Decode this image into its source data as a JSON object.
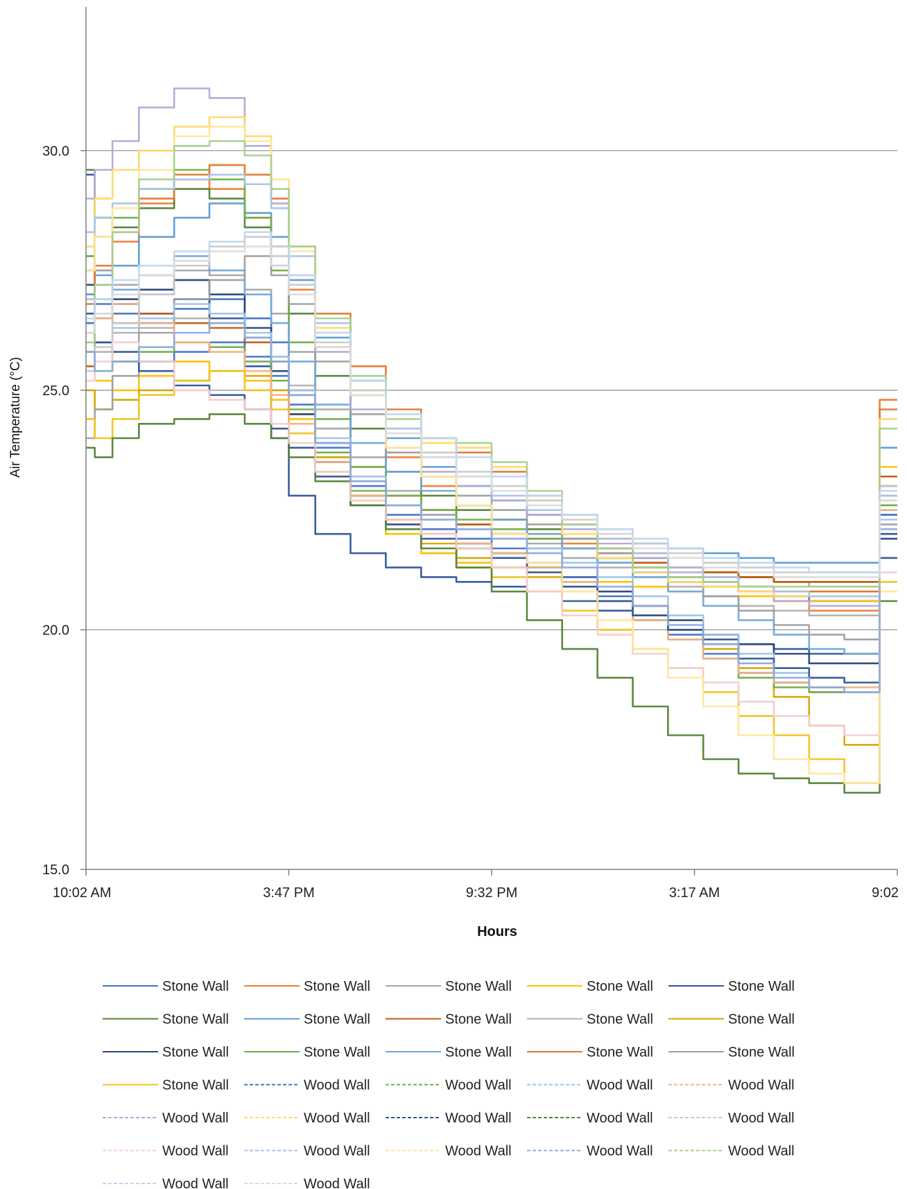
{
  "chart_data": {
    "type": "line",
    "xlabel": "Hours",
    "ylabel": "Air Temperature (°C)",
    "ylim": [
      15,
      33
    ],
    "y_ticks": [
      15.0,
      20.0,
      25.0,
      30.0
    ],
    "y_tick_labels": [
      "15.0",
      "20.0",
      "25.0",
      "30.0"
    ],
    "x_tick_labels": [
      "10:02 AM",
      "3:47 PM",
      "9:32 PM",
      "3:17 AM",
      "9:02"
    ],
    "x_tick_hours": [
      0,
      5.75,
      11.5,
      17.25,
      23
    ],
    "x_range_hours": [
      0,
      23
    ],
    "grid": "horizontal",
    "legend_position": "bottom",
    "x_hours": [
      0,
      0.5,
      1,
      2,
      3,
      4,
      5,
      5.5,
      6,
      7,
      8,
      9,
      10,
      11,
      12,
      13,
      14,
      15,
      16,
      17,
      18,
      19,
      20,
      21,
      22,
      23
    ],
    "series": [
      {
        "name": "Stone Wall",
        "color": "#4472c4",
        "dashed": false,
        "values": [
          27.5,
          26.8,
          26.6,
          26.4,
          26.7,
          26.9,
          26.5,
          26.0,
          24.9,
          23.9,
          23.1,
          22.6,
          22.4,
          22.2,
          22.0,
          21.7,
          21.5,
          21.4,
          21.2,
          21.0,
          20.9,
          20.8,
          20.7,
          20.6,
          20.6,
          22.4
        ]
      },
      {
        "name": "Stone Wall",
        "color": "#ed7d31",
        "dashed": false,
        "values": [
          27.0,
          27.5,
          28.1,
          28.9,
          29.4,
          29.2,
          28.6,
          28.0,
          27.1,
          25.9,
          24.9,
          23.6,
          23.0,
          22.6,
          22.3,
          22.0,
          21.8,
          21.5,
          21.3,
          21.1,
          21.0,
          20.8,
          20.6,
          20.4,
          20.4,
          24.8
        ]
      },
      {
        "name": "Stone Wall",
        "color": "#a5a5a5",
        "dashed": false,
        "values": [
          27.8,
          27.5,
          27.2,
          27.0,
          27.5,
          27.4,
          27.1,
          26.6,
          25.8,
          24.6,
          23.6,
          22.9,
          22.5,
          22.2,
          22.0,
          21.8,
          21.7,
          21.5,
          21.4,
          21.3,
          21.2,
          21.1,
          21.0,
          20.9,
          20.9,
          22.6
        ]
      },
      {
        "name": "Stone Wall",
        "color": "#ffc000",
        "dashed": false,
        "values": [
          25.8,
          25.2,
          25.0,
          25.3,
          25.6,
          25.4,
          25.2,
          24.8,
          24.4,
          23.6,
          22.7,
          22.0,
          21.6,
          21.4,
          21.3,
          21.2,
          21.1,
          21.0,
          20.9,
          20.8,
          20.7,
          20.7,
          20.6,
          20.6,
          20.6,
          23.4
        ]
      },
      {
        "name": "Stone Wall",
        "color": "#2f5597",
        "dashed": false,
        "values": [
          29.5,
          27.2,
          26.8,
          26.6,
          26.9,
          26.5,
          25.5,
          24.0,
          22.8,
          22.0,
          21.6,
          21.3,
          21.1,
          21.0,
          20.9,
          20.8,
          20.6,
          20.4,
          20.2,
          20.0,
          19.8,
          19.7,
          19.6,
          19.5,
          19.5,
          21.5
        ]
      },
      {
        "name": "Stone Wall",
        "color": "#548235",
        "dashed": false,
        "values": [
          29.6,
          28.6,
          28.4,
          28.8,
          29.2,
          29.0,
          28.4,
          27.6,
          26.6,
          25.3,
          24.2,
          23.3,
          22.8,
          22.5,
          22.3,
          22.1,
          21.9,
          21.7,
          21.5,
          21.3,
          21.2,
          21.1,
          21.0,
          21.0,
          21.0,
          23.0
        ]
      },
      {
        "name": "Stone Wall",
        "color": "#5b9bd5",
        "dashed": false,
        "values": [
          27.0,
          27.4,
          27.6,
          28.2,
          28.6,
          28.9,
          28.7,
          28.2,
          27.3,
          26.1,
          25.0,
          24.0,
          23.4,
          23.0,
          22.7,
          22.4,
          22.2,
          22.0,
          21.8,
          21.7,
          21.6,
          21.5,
          21.4,
          21.4,
          21.4,
          23.8
        ]
      },
      {
        "name": "Stone Wall",
        "color": "#c55a11",
        "dashed": false,
        "values": [
          25.5,
          26.0,
          26.4,
          26.6,
          26.4,
          26.3,
          26.0,
          25.6,
          25.0,
          24.2,
          23.4,
          22.8,
          22.5,
          22.2,
          22.0,
          21.9,
          21.7,
          21.6,
          21.4,
          21.3,
          21.2,
          21.1,
          21.0,
          21.0,
          21.0,
          23.2
        ]
      },
      {
        "name": "Stone Wall",
        "color": "#b0b0b0",
        "dashed": false,
        "values": [
          26.0,
          25.8,
          26.2,
          26.3,
          26.5,
          26.4,
          26.1,
          25.7,
          25.1,
          24.2,
          23.4,
          22.8,
          22.4,
          22.1,
          21.9,
          21.7,
          21.5,
          21.3,
          21.1,
          20.9,
          20.7,
          20.5,
          20.4,
          20.3,
          20.3,
          22.0
        ]
      },
      {
        "name": "Stone Wall",
        "color": "#d4a500",
        "dashed": false,
        "values": [
          25.0,
          24.6,
          24.8,
          25.0,
          25.2,
          25.4,
          25.3,
          25.0,
          24.5,
          23.6,
          22.8,
          22.2,
          21.8,
          21.5,
          21.3,
          21.1,
          20.9,
          20.6,
          20.3,
          20.0,
          19.6,
          19.2,
          18.6,
          18.0,
          17.6,
          22.8
        ]
      },
      {
        "name": "Stone Wall",
        "color": "#264478",
        "dashed": false,
        "values": [
          27.2,
          26.5,
          26.9,
          27.1,
          27.3,
          27.0,
          26.3,
          25.4,
          24.5,
          23.5,
          22.8,
          22.3,
          22.0,
          21.8,
          21.6,
          21.3,
          21.1,
          20.8,
          20.5,
          20.2,
          19.9,
          19.7,
          19.5,
          19.3,
          19.3,
          21.9
        ]
      },
      {
        "name": "Stone Wall",
        "color": "#70ad47",
        "dashed": false,
        "values": [
          27.8,
          28.2,
          28.6,
          29.2,
          29.6,
          29.4,
          28.6,
          27.5,
          26.0,
          24.4,
          23.4,
          22.8,
          22.5,
          22.3,
          22.1,
          21.9,
          21.7,
          21.5,
          21.3,
          21.1,
          21.0,
          20.9,
          20.8,
          20.8,
          20.8,
          22.5
        ]
      },
      {
        "name": "Stone Wall",
        "color": "#6fa8dc",
        "dashed": false,
        "values": [
          26.4,
          26.9,
          27.1,
          27.4,
          27.8,
          27.5,
          27.0,
          26.4,
          25.6,
          24.7,
          23.9,
          23.3,
          22.9,
          22.6,
          22.3,
          22.0,
          21.7,
          21.4,
          21.1,
          20.8,
          20.5,
          20.2,
          19.9,
          19.6,
          19.5,
          22.4
        ]
      },
      {
        "name": "Stone Wall",
        "color": "#e2782f",
        "dashed": false,
        "values": [
          26.8,
          27.6,
          28.3,
          29.0,
          29.5,
          29.7,
          29.5,
          29.0,
          28.0,
          26.6,
          25.5,
          24.6,
          24.0,
          23.7,
          23.3,
          22.8,
          22.3,
          21.9,
          21.6,
          21.3,
          21.1,
          20.9,
          20.8,
          20.8,
          20.8,
          24.6
        ]
      },
      {
        "name": "Stone Wall",
        "color": "#9e9e9e",
        "dashed": false,
        "values": [
          24.0,
          24.6,
          25.3,
          26.2,
          26.9,
          27.3,
          27.8,
          27.4,
          26.8,
          25.6,
          24.5,
          23.7,
          23.2,
          22.8,
          22.5,
          22.2,
          21.9,
          21.6,
          21.3,
          21.0,
          20.7,
          20.4,
          20.1,
          19.9,
          19.8,
          22.2
        ]
      },
      {
        "name": "Stone Wall",
        "color": "#f2c21a",
        "dashed": false,
        "values": [
          24.4,
          24.0,
          24.4,
          24.9,
          25.2,
          25.4,
          25.0,
          24.6,
          24.1,
          23.3,
          22.6,
          22.0,
          21.6,
          21.3,
          21.1,
          20.8,
          20.4,
          20.0,
          19.6,
          19.2,
          18.7,
          18.2,
          17.8,
          17.3,
          16.8,
          21.0
        ]
      },
      {
        "name": "Wood Wall",
        "color": "#4472c4",
        "dashed": true,
        "values": [
          26.4,
          26.0,
          25.6,
          25.6,
          25.8,
          26.0,
          25.7,
          25.3,
          24.7,
          23.8,
          23.0,
          22.4,
          22.1,
          21.9,
          21.7,
          21.4,
          21.1,
          20.7,
          20.3,
          19.9,
          19.5,
          19.1,
          18.9,
          18.7,
          18.7,
          22.4
        ]
      },
      {
        "name": "Wood Wall",
        "color": "#70ad47",
        "dashed": true,
        "values": [
          25.8,
          25.4,
          25.6,
          25.8,
          26.0,
          25.9,
          25.6,
          25.2,
          24.6,
          23.7,
          22.9,
          22.3,
          22.0,
          21.8,
          21.6,
          21.3,
          21.0,
          20.6,
          20.2,
          19.8,
          19.4,
          19.0,
          18.8,
          18.7,
          18.7,
          22.6
        ]
      },
      {
        "name": "Wood Wall",
        "color": "#9dc3e6",
        "dashed": true,
        "values": [
          26.9,
          26.6,
          26.3,
          26.5,
          26.8,
          26.6,
          26.2,
          25.7,
          25.0,
          24.0,
          23.2,
          22.6,
          22.3,
          22.1,
          21.9,
          21.7,
          21.4,
          21.1,
          20.7,
          20.3,
          19.9,
          19.5,
          19.1,
          18.8,
          18.7,
          22.3
        ]
      },
      {
        "name": "Wood Wall",
        "color": "#f4b183",
        "dashed": true,
        "values": [
          26.2,
          26.5,
          26.8,
          26.4,
          26.0,
          25.8,
          25.4,
          24.9,
          24.3,
          23.5,
          22.8,
          22.3,
          22.0,
          21.8,
          21.6,
          21.3,
          21.0,
          20.6,
          20.2,
          19.8,
          19.4,
          19.1,
          18.9,
          18.8,
          18.8,
          22.5
        ]
      },
      {
        "name": "Wood Wall",
        "color": "#b4a7d6",
        "dashed": true,
        "values": [
          29.0,
          29.6,
          30.2,
          30.9,
          31.3,
          31.1,
          30.1,
          28.9,
          27.4,
          25.8,
          24.6,
          23.8,
          23.3,
          23.0,
          22.7,
          22.4,
          22.1,
          21.8,
          21.5,
          21.2,
          21.0,
          20.8,
          20.6,
          20.5,
          20.5,
          22.7
        ]
      },
      {
        "name": "Wood Wall",
        "color": "#ffd966",
        "dashed": true,
        "values": [
          28.0,
          29.0,
          29.6,
          30.0,
          30.5,
          30.7,
          30.3,
          29.4,
          28.0,
          26.3,
          25.0,
          24.2,
          23.9,
          23.8,
          23.4,
          22.7,
          22.0,
          21.5,
          21.2,
          21.0,
          20.9,
          20.8,
          20.7,
          20.7,
          20.7,
          24.4
        ]
      },
      {
        "name": "Wood Wall",
        "color": "#2f5597",
        "dashed": true,
        "values": [
          26.6,
          26.0,
          25.8,
          25.4,
          25.1,
          24.9,
          24.6,
          24.2,
          23.8,
          23.2,
          22.6,
          22.2,
          21.9,
          21.7,
          21.5,
          21.2,
          20.9,
          20.6,
          20.3,
          20.0,
          19.7,
          19.4,
          19.2,
          19.0,
          18.9,
          22.0
        ]
      },
      {
        "name": "Wood Wall",
        "color": "#548235",
        "dashed": true,
        "values": [
          23.8,
          23.6,
          24.0,
          24.3,
          24.4,
          24.5,
          24.3,
          24.0,
          23.6,
          23.1,
          22.6,
          22.1,
          21.7,
          21.3,
          20.8,
          20.2,
          19.6,
          19.0,
          18.4,
          17.8,
          17.3,
          17.0,
          16.9,
          16.8,
          16.6,
          20.6
        ]
      },
      {
        "name": "Wood Wall",
        "color": "#c9c9c9",
        "dashed": true,
        "values": [
          25.4,
          25.9,
          26.4,
          27.0,
          27.6,
          28.0,
          28.2,
          27.8,
          27.2,
          26.0,
          25.0,
          24.2,
          23.7,
          23.3,
          23.0,
          22.7,
          22.4,
          22.1,
          21.8,
          21.6,
          21.4,
          21.3,
          21.2,
          21.2,
          21.2,
          23.0
        ]
      },
      {
        "name": "Wood Wall",
        "color": "#f4cccc",
        "dashed": true,
        "values": [
          25.2,
          25.6,
          26.0,
          25.6,
          25.0,
          24.8,
          24.6,
          24.3,
          23.9,
          23.3,
          22.7,
          22.3,
          22.0,
          21.7,
          21.3,
          20.8,
          20.3,
          19.9,
          19.5,
          19.2,
          18.9,
          18.5,
          18.2,
          18.0,
          17.8,
          21.2
        ]
      },
      {
        "name": "Wood Wall",
        "color": "#a9c4e8",
        "dashed": true,
        "values": [
          28.3,
          28.6,
          28.9,
          29.2,
          29.4,
          29.5,
          29.3,
          28.8,
          27.8,
          26.4,
          25.2,
          24.2,
          23.6,
          23.2,
          22.8,
          22.5,
          22.2,
          21.9,
          21.6,
          21.3,
          21.1,
          20.9,
          20.8,
          20.7,
          20.7,
          22.8
        ]
      },
      {
        "name": "Wood Wall",
        "color": "#ffe699",
        "dashed": true,
        "values": [
          27.5,
          28.2,
          28.8,
          29.6,
          30.3,
          30.5,
          30.2,
          29.4,
          27.9,
          26.2,
          24.9,
          23.8,
          23.2,
          22.6,
          22.0,
          21.4,
          20.8,
          20.2,
          19.6,
          19.0,
          18.4,
          17.8,
          17.3,
          17.0,
          16.8,
          20.8
        ]
      },
      {
        "name": "Wood Wall",
        "color": "#8faadc",
        "dashed": true,
        "values": [
          25.8,
          25.4,
          25.6,
          25.9,
          26.2,
          26.4,
          26.1,
          25.6,
          24.9,
          23.9,
          23.1,
          22.6,
          22.3,
          22.1,
          21.9,
          21.6,
          21.3,
          20.9,
          20.5,
          20.1,
          19.7,
          19.3,
          19.0,
          18.8,
          18.7,
          22.1
        ]
      },
      {
        "name": "Wood Wall",
        "color": "#a8d08d",
        "dashed": true,
        "values": [
          26.0,
          27.2,
          28.3,
          29.4,
          30.1,
          30.2,
          29.9,
          29.2,
          28.0,
          26.5,
          25.3,
          24.4,
          24.0,
          23.9,
          23.5,
          22.9,
          22.2,
          21.7,
          21.3,
          21.1,
          21.0,
          20.9,
          20.9,
          20.9,
          20.9,
          24.2
        ]
      },
      {
        "name": "Wood Wall",
        "color": "#bdd7ee",
        "dashed": true,
        "values": [
          26.5,
          26.9,
          27.3,
          27.6,
          27.9,
          28.1,
          28.3,
          28.0,
          27.4,
          26.2,
          25.2,
          24.5,
          24.0,
          23.6,
          23.2,
          22.8,
          22.4,
          22.1,
          21.9,
          21.7,
          21.5,
          21.4,
          21.3,
          21.2,
          21.2,
          22.9
        ]
      },
      {
        "name": "Wood Wall",
        "color": "#dbdbdb",
        "dashed": true,
        "values": [
          26.2,
          26.6,
          27.0,
          27.4,
          27.7,
          27.9,
          28.0,
          27.6,
          27.0,
          25.9,
          24.9,
          24.1,
          23.6,
          23.2,
          22.9,
          22.6,
          22.3,
          22.0,
          21.7,
          21.5,
          21.3,
          21.2,
          21.1,
          21.1,
          21.1,
          22.7
        ]
      }
    ]
  }
}
